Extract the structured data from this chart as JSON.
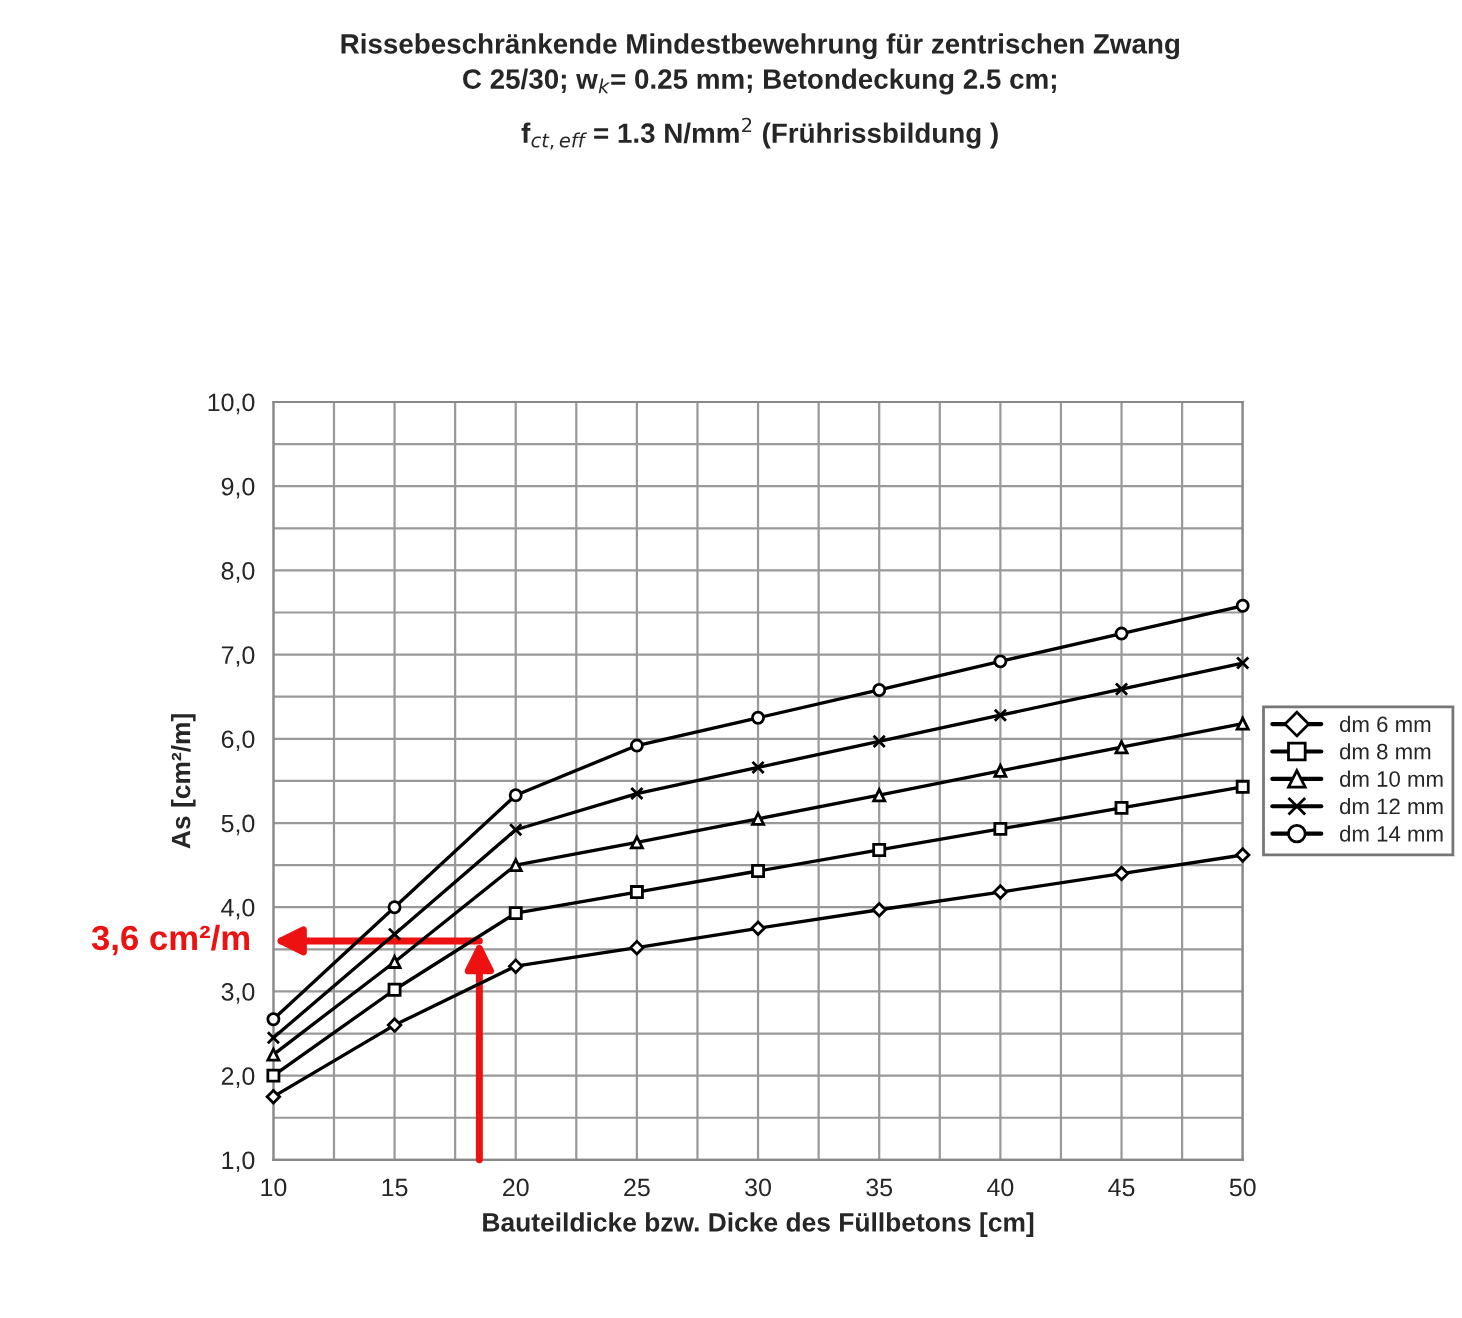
{
  "chart_data": {
    "type": "line",
    "title": "Rissebeschränkende Mindestbewehrung für zentrischen Zwang",
    "subtitle": "C 25/30; w$_{k}$= 0.25 mm; Betondeckung 2.5 cm;\nf$_{ct,eff}$ = 1.3 N/mm$^{2}$ (Frührissbildung )",
    "xlabel": "Bauteildicke bzw. Dicke des Füllbetons [cm]",
    "ylabel": "As [cm²/m]",
    "x": [
      10,
      15,
      20,
      25,
      30,
      35,
      40,
      45,
      50
    ],
    "series": [
      {
        "name": "dm 6 mm",
        "color": "#000000",
        "marker": "diamond",
        "values": [
          1.75,
          2.6,
          3.3,
          3.52,
          3.75,
          3.97,
          4.18,
          4.4,
          4.62
        ]
      },
      {
        "name": "dm 8 mm",
        "color": "#000000",
        "marker": "square",
        "values": [
          2.0,
          3.02,
          3.93,
          4.18,
          4.43,
          4.68,
          4.93,
          5.18,
          5.43
        ]
      },
      {
        "name": "dm 10 mm",
        "color": "#000000",
        "marker": "triangle",
        "values": [
          2.25,
          3.35,
          4.5,
          4.77,
          5.05,
          5.33,
          5.62,
          5.9,
          6.18
        ]
      },
      {
        "name": "dm 12 mm",
        "color": "#000000",
        "marker": "cross",
        "values": [
          2.45,
          3.68,
          4.92,
          5.35,
          5.66,
          5.97,
          6.28,
          6.59,
          6.9
        ]
      },
      {
        "name": "dm 14 mm",
        "color": "#000000",
        "marker": "circle",
        "values": [
          2.67,
          4.0,
          5.33,
          5.92,
          6.25,
          6.58,
          6.92,
          7.25,
          7.58
        ]
      }
    ],
    "xlim": [
      10,
      50
    ],
    "xticks": [
      10,
      {
        "value": 12.5,
        "label": null
      },
      15,
      {
        "value": 17.5,
        "label": null
      },
      20,
      {
        "value": 22.5,
        "label": null
      },
      25,
      {
        "value": 27.5,
        "label": null
      },
      30,
      {
        "value": 32.5,
        "label": null
      },
      35,
      {
        "value": 37.5,
        "label": null
      },
      40,
      {
        "value": 42.5,
        "label": null
      },
      45,
      {
        "value": 47.5,
        "label": null
      },
      50
    ],
    "ylim": [
      1,
      10
    ],
    "yticks": [
      {
        "value": 1,
        "label": "1,0"
      },
      {
        "value": 1.5,
        "label": null
      },
      {
        "value": 2,
        "label": "2,0"
      },
      {
        "value": 2.5,
        "label": null
      },
      {
        "value": 3,
        "label": "3,0"
      },
      {
        "value": 3.5,
        "label": null
      },
      {
        "value": 4,
        "label": "4,0"
      },
      {
        "value": 4.5,
        "label": null
      },
      {
        "value": 5,
        "label": "5,0"
      },
      {
        "value": 5.5,
        "label": null
      },
      {
        "value": 6,
        "label": "6,0"
      },
      {
        "value": 6.5,
        "label": null
      },
      {
        "value": 7,
        "label": "7,0"
      },
      {
        "value": 7.5,
        "label": null
      },
      {
        "value": 8,
        "label": "8,0"
      },
      {
        "value": 8.5,
        "label": null
      },
      {
        "value": 9,
        "label": "9,0"
      },
      {
        "value": 9.5,
        "label": null
      },
      {
        "value": 10,
        "label": "10,0"
      }
    ],
    "grid": true,
    "legend": "right",
    "line_style": "solid",
    "annotations": [
      {
        "text": "3,6 cm²/m",
        "x": 18.5,
        "y": 3.6
      }
    ]
  }
}
